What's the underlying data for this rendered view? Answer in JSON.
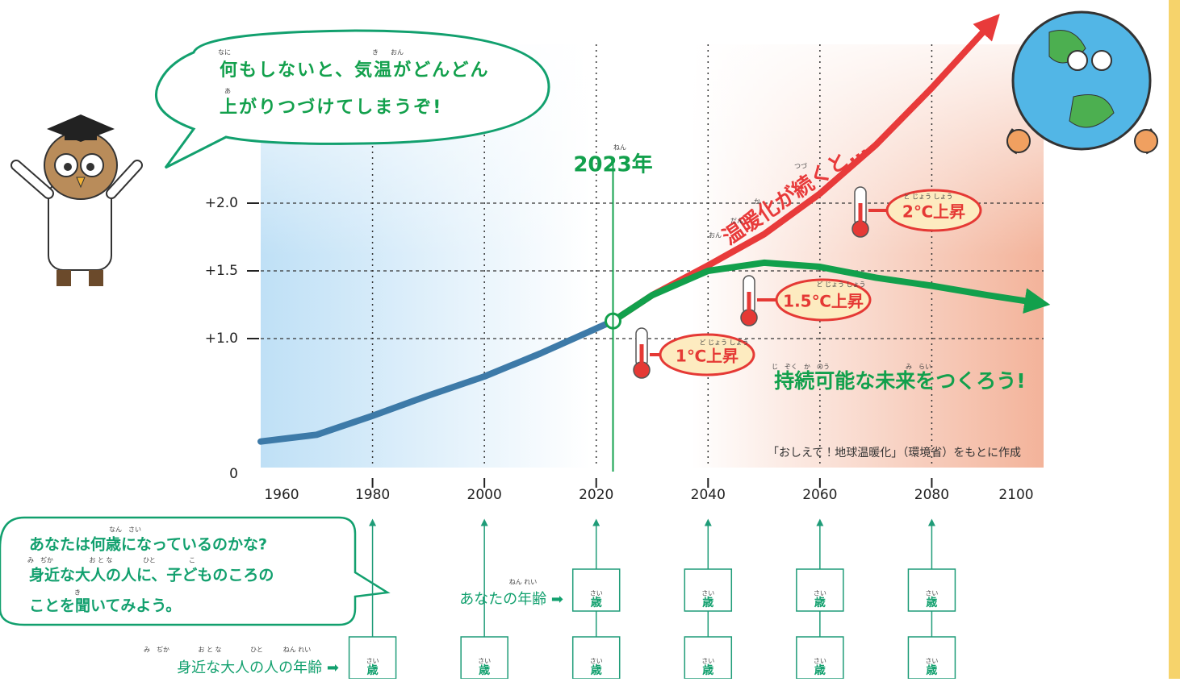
{
  "chart_data": {
    "type": "line",
    "x": [
      1960,
      1970,
      1980,
      1990,
      2000,
      2010,
      2023,
      2030,
      2040,
      2050,
      2060,
      2070,
      2080,
      2090,
      2098
    ],
    "series": [
      {
        "color": "#3d7aa8",
        "values": [
          0.24,
          0.29,
          0.43,
          0.58,
          0.72,
          0.89,
          1.13,
          null,
          null,
          null,
          null,
          null,
          null,
          null,
          null
        ]
      },
      {
        "name": "温暖化が続くと…",
        "color": "#e83a3a",
        "values": [
          null,
          null,
          null,
          null,
          null,
          null,
          1.13,
          1.32,
          1.54,
          1.77,
          2.07,
          2.43,
          2.85,
          3.3,
          null
        ]
      },
      {
        "name": "持続可能な未来をつくろう!",
        "color": "#12a04c",
        "values": [
          null,
          null,
          null,
          null,
          null,
          null,
          1.13,
          1.32,
          1.5,
          1.56,
          1.53,
          1.45,
          1.39,
          1.32,
          1.27
        ]
      }
    ],
    "xlim": [
      1960,
      2100
    ],
    "xticks": [
      1960,
      1980,
      2000,
      2020,
      2040,
      2060,
      2080,
      2100
    ],
    "ylim": [
      0,
      3.5
    ],
    "yticks": [
      0,
      {
        "value": 1,
        "label": "+1.0"
      },
      {
        "value": 1.5,
        "label": "+1.5"
      },
      {
        "value": 2,
        "label": "+2.0"
      }
    ],
    "grid": true,
    "marker_year": {
      "value": 2023,
      "label": "2023年"
    },
    "annotations": [
      "1℃上昇",
      "1.5℃上昇",
      "2℃上昇"
    ],
    "source": "「おしえて！地球温暖化」（環境省）をもとに作成"
  },
  "speech_top": [
    "何もしないと、気温がどんどん",
    "上がりつづけてしまうぞ!"
  ],
  "speech_bottom": [
    "あなたは何歳になっているのかな?",
    "身近な大人の人に、子どものころの",
    "ことを聞いてみよう。"
  ],
  "age_rows": {
    "yours": "あなたの年齢 ➡",
    "adult": "身近な大人の人の年齢 ➡",
    "unit": "歳",
    "unit_ruby": "さい"
  },
  "furigana": [
    "なに",
    "き",
    "おん",
    "あ",
    "ねん",
    "おん",
    "だん",
    "か",
    "つづ",
    "ど じょう しょう",
    "ど じょう しょう",
    "ど じょう しょう",
    "じ　ぞく　か　のう",
    "み　らい",
    "なん　さい",
    "み　ぢか",
    "お と な",
    "ひと",
    "こ",
    "き",
    "ねん れい",
    "み　ぢか",
    "お と な",
    "ひと",
    "ねん れい"
  ]
}
